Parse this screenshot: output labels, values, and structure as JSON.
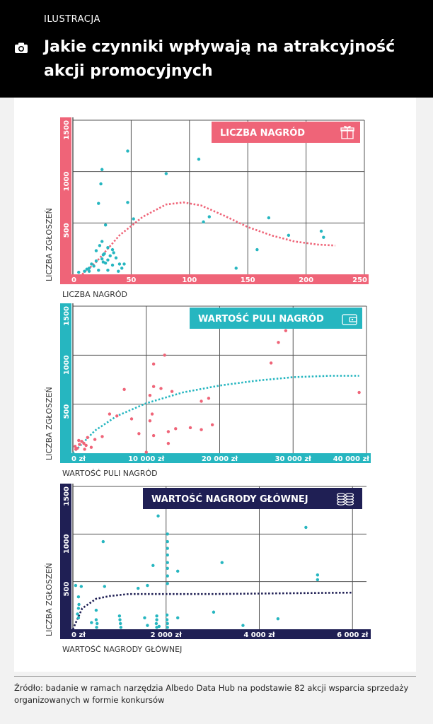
{
  "header": {
    "kicker": "ILUSTRACJA",
    "title": "Jakie czynniki wpływają na atrakcyjność akcji promocyjnych",
    "icon": "camera-icon"
  },
  "footer": {
    "source": "Źródło: badanie w ramach narzędzia Albedo Data Hub na podstawie 82 akcji wsparcia sprzedaży organizowanych w formie konkursów"
  },
  "chart_data": [
    {
      "type": "scatter",
      "title": "LICZBA NAGRÓD",
      "title_icon": "gift-icon",
      "xlabel": "LICZBA NAGRÓD",
      "ylabel": "LICZBA ZGŁOSZEŃ",
      "xlim": [
        0,
        250
      ],
      "ylim": [
        0,
        1500
      ],
      "x_ticks": [
        0,
        50,
        100,
        150,
        200,
        250
      ],
      "x_tick_labels": [
        "0",
        "50",
        "100",
        "150",
        "200",
        "250"
      ],
      "y_ticks": [
        500,
        1000,
        1500
      ],
      "y_tick_labels": [
        "500",
        "1000",
        "1500"
      ],
      "grid": true,
      "colors": {
        "accent": "#ef6478",
        "points": "#26b6c0",
        "trend": "#ef6478"
      },
      "points": [
        [
          140,
          1450
        ],
        [
          47,
          1200
        ],
        [
          108,
          1120
        ],
        [
          25,
          1020
        ],
        [
          80,
          980
        ],
        [
          24,
          880
        ],
        [
          47,
          700
        ],
        [
          22,
          690
        ],
        [
          117,
          560
        ],
        [
          168,
          550
        ],
        [
          52,
          540
        ],
        [
          112,
          510
        ],
        [
          28,
          480
        ],
        [
          213,
          420
        ],
        [
          185,
          380
        ],
        [
          215,
          360
        ],
        [
          25,
          320
        ],
        [
          23,
          280
        ],
        [
          30,
          260
        ],
        [
          34,
          240
        ],
        [
          20,
          230
        ],
        [
          35,
          210
        ],
        [
          27,
          200
        ],
        [
          26,
          190
        ],
        [
          32,
          180
        ],
        [
          37,
          160
        ],
        [
          25,
          150
        ],
        [
          30,
          140
        ],
        [
          20,
          130
        ],
        [
          26,
          120
        ],
        [
          28,
          110
        ],
        [
          40,
          100
        ],
        [
          44,
          100
        ],
        [
          34,
          90
        ],
        [
          18,
          80
        ],
        [
          14,
          60
        ],
        [
          12,
          50
        ],
        [
          22,
          40
        ],
        [
          30,
          40
        ],
        [
          10,
          30
        ],
        [
          5,
          20
        ],
        [
          39,
          30
        ],
        [
          42,
          60
        ],
        [
          14,
          30
        ],
        [
          16,
          100
        ],
        [
          158,
          240
        ],
        [
          140,
          60
        ]
      ],
      "trend": [
        [
          8,
          0
        ],
        [
          20,
          120
        ],
        [
          40,
          380
        ],
        [
          60,
          560
        ],
        [
          80,
          680
        ],
        [
          95,
          700
        ],
        [
          110,
          670
        ],
        [
          130,
          570
        ],
        [
          150,
          460
        ],
        [
          170,
          380
        ],
        [
          190,
          320
        ],
        [
          210,
          290
        ],
        [
          225,
          280
        ]
      ]
    },
    {
      "type": "scatter",
      "title": "WARTOŚĆ PULI NAGRÓD",
      "title_icon": "wallet-icon",
      "xlabel": "WARTOŚĆ PULI  NAGRÓD",
      "ylabel": "LICZBA ZGŁOSZEŃ",
      "xlim": [
        0,
        40000
      ],
      "ylim": [
        0,
        1500
      ],
      "x_ticks": [
        0,
        10000,
        20000,
        30000,
        40000
      ],
      "x_tick_labels": [
        "0 zł",
        "10 000 zł",
        "20 000 zł",
        "30 000 zł",
        "40 000 zł"
      ],
      "y_ticks": [
        500,
        1000,
        1500
      ],
      "y_tick_labels": [
        "500",
        "1000",
        "1500"
      ],
      "grid": true,
      "colors": {
        "accent": "#26b6c0",
        "points": "#ef6478",
        "trend": "#26b6c0"
      },
      "points": [
        [
          29000,
          1250
        ],
        [
          28000,
          1130
        ],
        [
          12500,
          1000
        ],
        [
          27000,
          920
        ],
        [
          11000,
          910
        ],
        [
          11000,
          680
        ],
        [
          12000,
          660
        ],
        [
          7000,
          650
        ],
        [
          13500,
          630
        ],
        [
          18500,
          560
        ],
        [
          17500,
          530
        ],
        [
          39000,
          620
        ],
        [
          10500,
          590
        ],
        [
          5000,
          400
        ],
        [
          10800,
          400
        ],
        [
          6000,
          380
        ],
        [
          8000,
          350
        ],
        [
          10500,
          330
        ],
        [
          19000,
          290
        ],
        [
          16000,
          260
        ],
        [
          14000,
          250
        ],
        [
          17500,
          240
        ],
        [
          13000,
          220
        ],
        [
          9000,
          200
        ],
        [
          11000,
          180
        ],
        [
          4000,
          170
        ],
        [
          2000,
          160
        ],
        [
          3000,
          140
        ],
        [
          800,
          130
        ],
        [
          1200,
          120
        ],
        [
          1500,
          100
        ],
        [
          900,
          90
        ],
        [
          1800,
          80
        ],
        [
          300,
          70
        ],
        [
          600,
          50
        ],
        [
          2500,
          60
        ],
        [
          400,
          40
        ],
        [
          1600,
          40
        ],
        [
          10000,
          10
        ],
        [
          13000,
          100
        ]
      ],
      "trend": [
        [
          0,
          0
        ],
        [
          3000,
          230
        ],
        [
          6000,
          380
        ],
        [
          10000,
          510
        ],
        [
          15000,
          620
        ],
        [
          20000,
          690
        ],
        [
          25000,
          740
        ],
        [
          30000,
          775
        ],
        [
          35000,
          790
        ],
        [
          39000,
          790
        ]
      ]
    },
    {
      "type": "scatter",
      "title": "WARTOŚĆ NAGRODY GŁÓWNEJ",
      "title_icon": "coins-icon",
      "xlabel": "WARTOŚĆ NAGRODY GŁÓWNEJ",
      "ylabel": "LICZBA ZGŁOSZEŃ",
      "xlim": [
        0,
        6300
      ],
      "ylim": [
        0,
        1500
      ],
      "x_ticks": [
        0,
        2000,
        4000,
        6000
      ],
      "x_tick_labels": [
        "0 zł",
        "2 000 zł",
        "4 000 zł",
        "6 000 zł"
      ],
      "y_ticks": [
        500,
        1000,
        1500
      ],
      "y_tick_labels": [
        "500",
        "1000",
        "1500"
      ],
      "grid": true,
      "colors": {
        "accent": "#1f1f54",
        "points": "#26b6c0",
        "trend": "#1f1f54"
      },
      "points": [
        [
          1830,
          1190
        ],
        [
          5000,
          1070
        ],
        [
          2030,
          1000
        ],
        [
          2030,
          920
        ],
        [
          650,
          920
        ],
        [
          2030,
          850
        ],
        [
          2030,
          780
        ],
        [
          2030,
          700
        ],
        [
          3200,
          700
        ],
        [
          1720,
          670
        ],
        [
          2250,
          610
        ],
        [
          5250,
          570
        ],
        [
          5250,
          520
        ],
        [
          2030,
          640
        ],
        [
          2030,
          560
        ],
        [
          2030,
          480
        ],
        [
          1400,
          430
        ],
        [
          1600,
          460
        ],
        [
          60,
          460
        ],
        [
          180,
          450
        ],
        [
          680,
          450
        ],
        [
          120,
          340
        ],
        [
          130,
          260
        ],
        [
          120,
          220
        ],
        [
          100,
          160
        ],
        [
          120,
          120
        ],
        [
          500,
          100
        ],
        [
          520,
          60
        ],
        [
          510,
          20
        ],
        [
          1000,
          140
        ],
        [
          1010,
          100
        ],
        [
          1020,
          60
        ],
        [
          1030,
          20
        ],
        [
          1540,
          120
        ],
        [
          1800,
          140
        ],
        [
          1800,
          100
        ],
        [
          1790,
          60
        ],
        [
          1800,
          20
        ],
        [
          1850,
          30
        ],
        [
          2020,
          150
        ],
        [
          2020,
          100
        ],
        [
          2030,
          60
        ],
        [
          2030,
          20
        ],
        [
          1600,
          40
        ],
        [
          2250,
          120
        ],
        [
          3020,
          180
        ],
        [
          3650,
          40
        ],
        [
          4400,
          110
        ],
        [
          400,
          70
        ],
        [
          500,
          200
        ]
      ],
      "trend": [
        [
          0,
          0
        ],
        [
          200,
          220
        ],
        [
          500,
          320
        ],
        [
          800,
          350
        ],
        [
          1200,
          370
        ],
        [
          1800,
          370
        ],
        [
          3000,
          370
        ],
        [
          4000,
          375
        ],
        [
          5000,
          380
        ],
        [
          6000,
          385
        ]
      ]
    }
  ]
}
